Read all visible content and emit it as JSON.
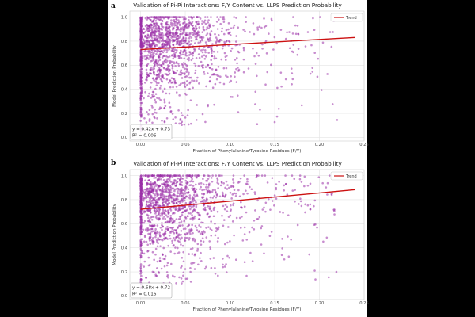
{
  "chart_data": [
    {
      "panel": "a",
      "type": "scatter",
      "title": "Validation of Pi-Pi Interactions: F/Y Content vs. LLPS Prediction Probability",
      "xlabel": "Fraction of Phenylalanine/Tyrosine Residues (F/Y)",
      "ylabel": "Model Prediction Probability",
      "xlim": [
        -0.012,
        0.25
      ],
      "ylim": [
        -0.03,
        1.05
      ],
      "xticks": [
        "0.00",
        "0.05",
        "0.10",
        "0.15",
        "0.20",
        "0.25"
      ],
      "yticks": [
        "0.0",
        "0.2",
        "0.4",
        "0.6",
        "0.8",
        "1.0"
      ],
      "grid": true,
      "legend": {
        "position": "top-right",
        "entries": [
          "Trend"
        ]
      },
      "trend": {
        "slope": 0.42,
        "intercept": 0.73,
        "x_range": [
          0.0,
          0.24
        ],
        "color": "#cc1111"
      },
      "annotation": [
        "y = 0.42x + 0.73",
        "R² = 0.006"
      ],
      "point_color": "#9b2fa8",
      "seed": 17
    },
    {
      "panel": "b",
      "type": "scatter",
      "title": "Validation of Pi-Pi Interactions: F/Y Content vs. LLPS Prediction Probability",
      "xlabel": "Fraction of Phenylalanine/Tyrosine Residues (F/Y)",
      "ylabel": "Model Prediction Probability",
      "xlim": [
        -0.012,
        0.25
      ],
      "ylim": [
        -0.03,
        1.05
      ],
      "xticks": [
        "0.00",
        "0.05",
        "0.10",
        "0.15",
        "0.20",
        "0.25"
      ],
      "yticks": [
        "0.0",
        "0.2",
        "0.4",
        "0.6",
        "0.8",
        "1.0"
      ],
      "grid": true,
      "legend": {
        "position": "top-right",
        "entries": [
          "Trend"
        ]
      },
      "trend": {
        "slope": 0.68,
        "intercept": 0.72,
        "x_range": [
          0.0,
          0.24
        ],
        "color": "#cc1111"
      },
      "annotation": [
        "y = 0.68x + 0.72",
        "R² = 0.016"
      ],
      "point_color": "#9b2fa8",
      "seed": 91
    }
  ]
}
